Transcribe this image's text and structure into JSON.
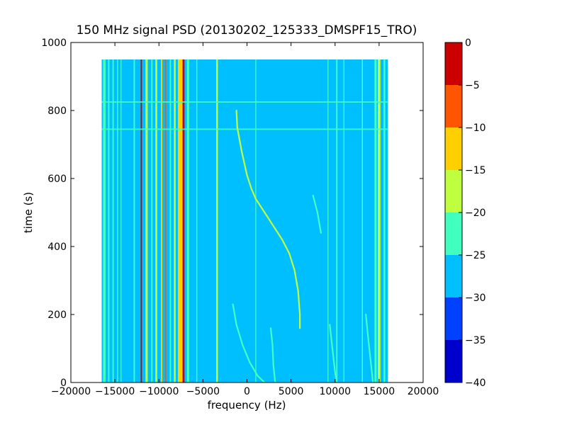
{
  "chart_data": {
    "type": "heatmap",
    "title": "150 MHz signal PSD (20130202_125333_DMSPF15_TRO)",
    "xlabel": "frequency (Hz)",
    "ylabel": "time (s)",
    "xlim": [
      -20000,
      20000
    ],
    "ylim": [
      0,
      1000
    ],
    "xticks": [
      -20000,
      -15000,
      -10000,
      -5000,
      0,
      5000,
      10000,
      15000,
      20000
    ],
    "xtick_labels": [
      "−20000",
      "−15000",
      "−10000",
      "−5000",
      "0",
      "5000",
      "10000",
      "15000",
      "20000"
    ],
    "yticks": [
      0,
      200,
      400,
      600,
      800,
      1000
    ],
    "ytick_labels": [
      "0",
      "200",
      "400",
      "600",
      "800",
      "1000"
    ],
    "data_extent": {
      "x": [
        -16500,
        16000
      ],
      "y": [
        0,
        950
      ]
    },
    "background_level": -27.5,
    "colorbar": {
      "levels": [
        -40,
        -35,
        -30,
        -25,
        -20,
        -15,
        -10,
        -5,
        0
      ],
      "tick_labels": [
        "−40",
        "−35",
        "−30",
        "−25",
        "−20",
        "−15",
        "−10",
        "−5",
        "0"
      ],
      "colors": [
        "#0000cd",
        "#0040ff",
        "#00bfff",
        "#40ffbf",
        "#bfff40",
        "#ffcf00",
        "#ff5500",
        "#cd0000"
      ]
    },
    "vertical_lines": [
      {
        "f": -16200,
        "level": -22.5,
        "width": 300
      },
      {
        "f": -15700,
        "level": -22.5,
        "width": 150
      },
      {
        "f": -15200,
        "level": -22.5,
        "width": 150
      },
      {
        "f": -14700,
        "level": -22.5,
        "width": 120
      },
      {
        "f": -14300,
        "level": -22.5,
        "width": 100
      },
      {
        "f": -12800,
        "level": -22.5,
        "width": 150
      },
      {
        "f": -12000,
        "level": -2.5,
        "width": 150
      },
      {
        "f": -11400,
        "level": -17.5,
        "width": 250
      },
      {
        "f": -10800,
        "level": -22.5,
        "width": 150
      },
      {
        "f": -10300,
        "level": -17.5,
        "width": 200
      },
      {
        "f": -9700,
        "level": -12.5,
        "width": 150
      },
      {
        "f": -9250,
        "level": -7.5,
        "width": 150
      },
      {
        "f": -8700,
        "level": -22.5,
        "width": 150
      },
      {
        "f": -8200,
        "level": -17.5,
        "width": 200
      },
      {
        "f": -7600,
        "level": -12.5,
        "width": 500
      },
      {
        "f": -7200,
        "level": -2.5,
        "width": 200
      },
      {
        "f": -6700,
        "level": -22.5,
        "width": 250
      },
      {
        "f": -5700,
        "level": -22.5,
        "width": 120
      },
      {
        "f": -3400,
        "level": -17.5,
        "width": 200
      },
      {
        "f": 1000,
        "level": -22.5,
        "width": 100
      },
      {
        "f": 9200,
        "level": -22.5,
        "width": 100
      },
      {
        "f": 10200,
        "level": -22.5,
        "width": 150
      },
      {
        "f": 11000,
        "level": -22.5,
        "width": 100
      },
      {
        "f": 13100,
        "level": -22.5,
        "width": 120
      },
      {
        "f": 14600,
        "level": -22.5,
        "width": 250
      },
      {
        "f": 15000,
        "level": -17.5,
        "width": 300
      },
      {
        "f": 15600,
        "level": -22.5,
        "width": 200
      }
    ],
    "horizontal_lines": [
      {
        "t": 825,
        "level": -22.5
      },
      {
        "t": 745,
        "level": -22.5
      }
    ],
    "curves": [
      {
        "name": "main-doppler",
        "level": -17.5,
        "points": [
          [
            -1200,
            800
          ],
          [
            -1100,
            750
          ],
          [
            -600,
            680
          ],
          [
            0,
            610
          ],
          [
            500,
            570
          ],
          [
            1000,
            540
          ],
          [
            2000,
            500
          ],
          [
            3000,
            460
          ],
          [
            4000,
            420
          ],
          [
            4800,
            380
          ],
          [
            5400,
            330
          ],
          [
            5800,
            270
          ],
          [
            6000,
            200
          ],
          [
            6000,
            160
          ]
        ]
      },
      {
        "name": "doppler-low-1",
        "level": -22.5,
        "points": [
          [
            -1600,
            230
          ],
          [
            -1200,
            170
          ],
          [
            -500,
            110
          ],
          [
            300,
            60
          ],
          [
            1200,
            20
          ],
          [
            2000,
            0
          ]
        ]
      },
      {
        "name": "doppler-low-2",
        "level": -22.5,
        "points": [
          [
            2700,
            160
          ],
          [
            2900,
            110
          ],
          [
            3000,
            50
          ],
          [
            3200,
            0
          ]
        ]
      },
      {
        "name": "doppler-low-3",
        "level": -22.5,
        "points": [
          [
            8400,
            440
          ],
          [
            8000,
            500
          ],
          [
            7500,
            550
          ]
        ]
      },
      {
        "name": "doppler-right-1",
        "level": -22.5,
        "points": [
          [
            9400,
            170
          ],
          [
            9700,
            100
          ],
          [
            10000,
            30
          ],
          [
            10200,
            0
          ]
        ]
      },
      {
        "name": "doppler-right-2",
        "level": -22.5,
        "points": [
          [
            13500,
            200
          ],
          [
            13800,
            120
          ],
          [
            14100,
            50
          ],
          [
            14300,
            0
          ]
        ]
      }
    ]
  }
}
